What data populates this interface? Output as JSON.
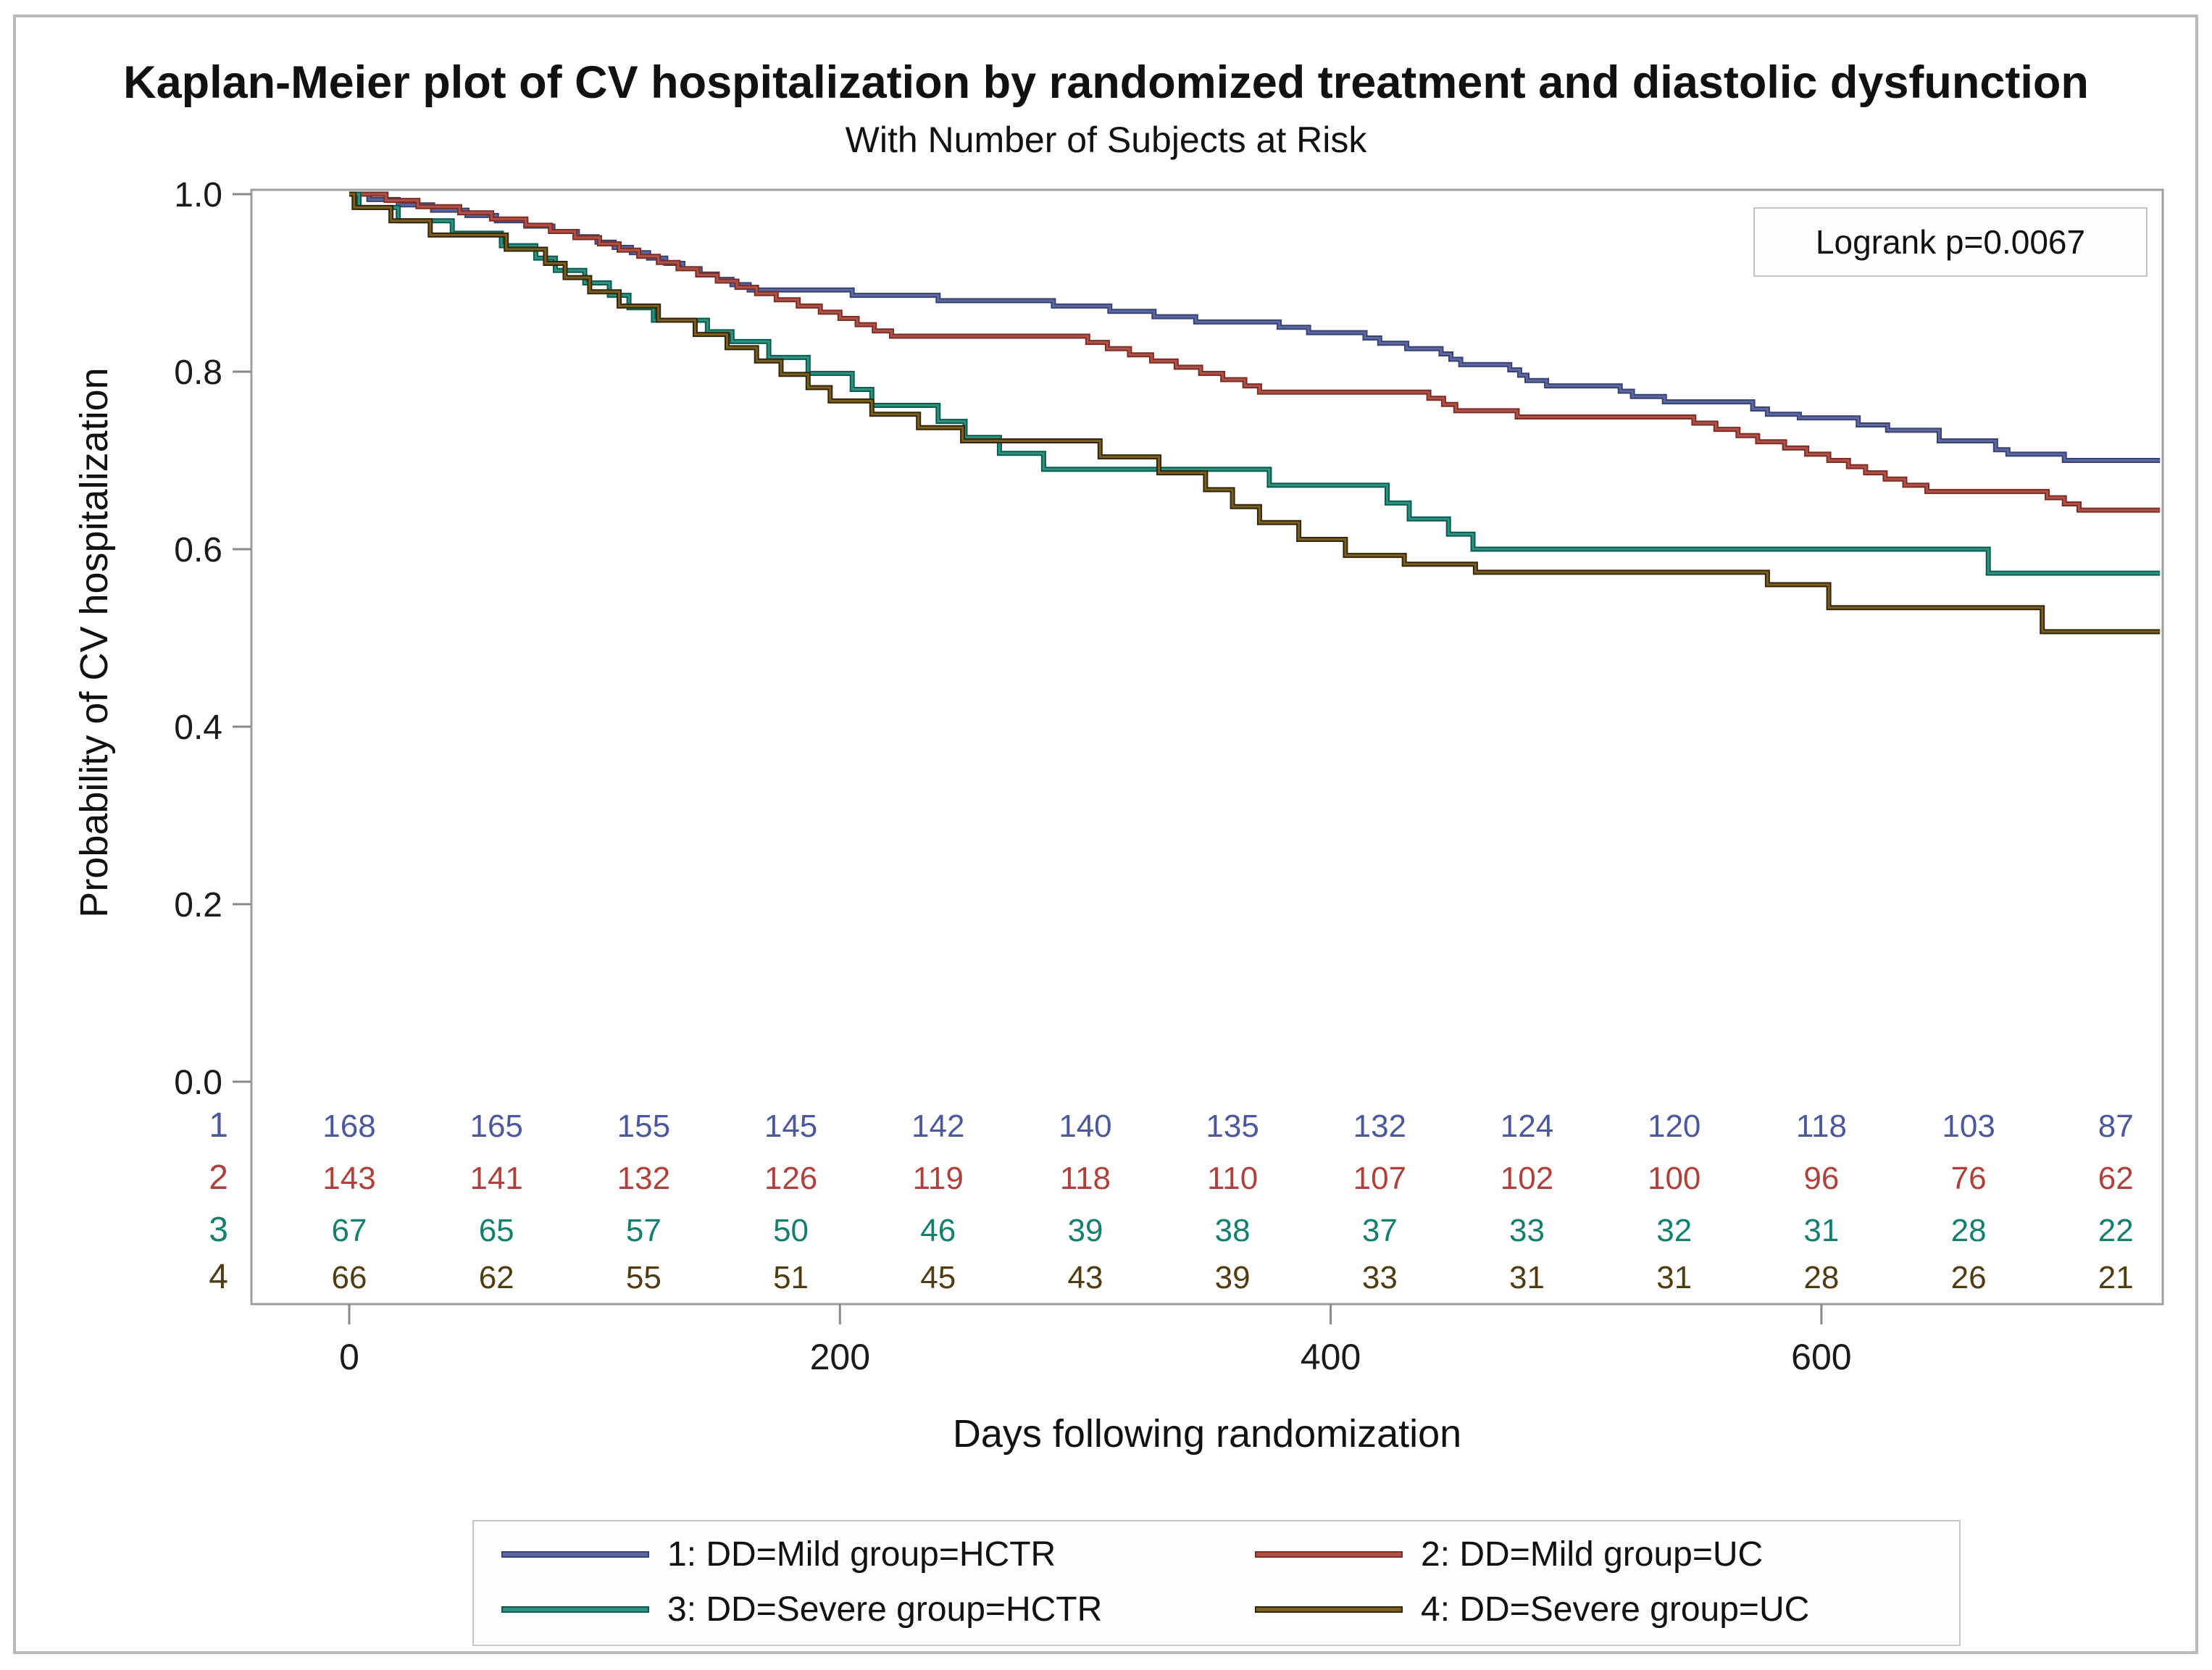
{
  "figure": {
    "title": "Kaplan-Meier plot of CV hospitalization by randomized treatment and diastolic dysfunction",
    "subtitle": "With Number of Subjects at Risk",
    "annotation": "Logrank p=0.0067"
  },
  "chart_data": {
    "type": "line",
    "step": "hv",
    "title": "Kaplan-Meier plot of CV hospitalization by randomized treatment and diastolic dysfunction",
    "subtitle": "With Number of Subjects at Risk",
    "xlabel": "Days following randomization",
    "ylabel": "Probability of CV hospitalization",
    "xlim": [
      -40,
      738
    ],
    "ylim": [
      0.0,
      1.0
    ],
    "x_ticks": [
      0,
      200,
      400,
      600
    ],
    "y_ticks": [
      1.0,
      0.8,
      0.6,
      0.4,
      0.2,
      0.0
    ],
    "grid": false,
    "legend_position": "bottom",
    "annotation": "Logrank p=0.0067",
    "series": [
      {
        "name": "1: DD=Mild group=HCTR",
        "color": "#5c68a5",
        "edge": "#39426e",
        "points": [
          [
            0,
            1.0
          ],
          [
            8,
            0.994
          ],
          [
            20,
            0.988
          ],
          [
            34,
            0.982
          ],
          [
            48,
            0.976
          ],
          [
            60,
            0.97
          ],
          [
            72,
            0.964
          ],
          [
            83,
            0.958
          ],
          [
            93,
            0.952
          ],
          [
            101,
            0.946
          ],
          [
            108,
            0.94
          ],
          [
            115,
            0.934
          ],
          [
            122,
            0.928
          ],
          [
            129,
            0.922
          ],
          [
            136,
            0.916
          ],
          [
            143,
            0.91
          ],
          [
            150,
            0.904
          ],
          [
            156,
            0.898
          ],
          [
            163,
            0.892
          ],
          [
            205,
            0.886
          ],
          [
            240,
            0.88
          ],
          [
            287,
            0.874
          ],
          [
            310,
            0.868
          ],
          [
            328,
            0.862
          ],
          [
            345,
            0.856
          ],
          [
            379,
            0.85
          ],
          [
            391,
            0.844
          ],
          [
            414,
            0.838
          ],
          [
            420,
            0.832
          ],
          [
            431,
            0.826
          ],
          [
            445,
            0.82
          ],
          [
            449,
            0.814
          ],
          [
            453,
            0.808
          ],
          [
            473,
            0.802
          ],
          [
            477,
            0.796
          ],
          [
            480,
            0.79
          ],
          [
            488,
            0.784
          ],
          [
            518,
            0.778
          ],
          [
            523,
            0.772
          ],
          [
            536,
            0.766
          ],
          [
            572,
            0.758
          ],
          [
            578,
            0.752
          ],
          [
            591,
            0.748
          ],
          [
            615,
            0.74
          ],
          [
            627,
            0.734
          ],
          [
            648,
            0.722
          ],
          [
            671,
            0.712
          ],
          [
            676,
            0.707
          ],
          [
            699,
            0.7
          ],
          [
            738,
            0.7
          ]
        ]
      },
      {
        "name": "2: DD=Mild group=UC",
        "color": "#b0514a",
        "edge": "#7c2d24",
        "points": [
          [
            0,
            1.0
          ],
          [
            15,
            0.993
          ],
          [
            28,
            0.986
          ],
          [
            45,
            0.979
          ],
          [
            58,
            0.972
          ],
          [
            72,
            0.965
          ],
          [
            82,
            0.958
          ],
          [
            92,
            0.951
          ],
          [
            102,
            0.944
          ],
          [
            110,
            0.937
          ],
          [
            118,
            0.93
          ],
          [
            126,
            0.923
          ],
          [
            134,
            0.916
          ],
          [
            142,
            0.909
          ],
          [
            150,
            0.902
          ],
          [
            158,
            0.895
          ],
          [
            166,
            0.888
          ],
          [
            174,
            0.881
          ],
          [
            183,
            0.874
          ],
          [
            192,
            0.867
          ],
          [
            200,
            0.86
          ],
          [
            207,
            0.853
          ],
          [
            214,
            0.846
          ],
          [
            221,
            0.84
          ],
          [
            301,
            0.833
          ],
          [
            309,
            0.826
          ],
          [
            318,
            0.819
          ],
          [
            327,
            0.812
          ],
          [
            337,
            0.805
          ],
          [
            347,
            0.798
          ],
          [
            356,
            0.791
          ],
          [
            365,
            0.784
          ],
          [
            371,
            0.777
          ],
          [
            440,
            0.77
          ],
          [
            446,
            0.763
          ],
          [
            451,
            0.756
          ],
          [
            476,
            0.749
          ],
          [
            548,
            0.742
          ],
          [
            557,
            0.735
          ],
          [
            566,
            0.728
          ],
          [
            574,
            0.721
          ],
          [
            585,
            0.714
          ],
          [
            594,
            0.707
          ],
          [
            603,
            0.7
          ],
          [
            611,
            0.693
          ],
          [
            618,
            0.686
          ],
          [
            626,
            0.679
          ],
          [
            634,
            0.672
          ],
          [
            643,
            0.665
          ],
          [
            692,
            0.658
          ],
          [
            699,
            0.651
          ],
          [
            705,
            0.644
          ],
          [
            738,
            0.644
          ]
        ]
      },
      {
        "name": "3: DD=Severe group=HCTR",
        "color": "#2d9380",
        "edge": "#0a5a4e",
        "points": [
          [
            0,
            1.0
          ],
          [
            4,
            0.985
          ],
          [
            20,
            0.97
          ],
          [
            42,
            0.956
          ],
          [
            62,
            0.942
          ],
          [
            76,
            0.928
          ],
          [
            84,
            0.914
          ],
          [
            96,
            0.9
          ],
          [
            106,
            0.886
          ],
          [
            114,
            0.872
          ],
          [
            124,
            0.858
          ],
          [
            146,
            0.845
          ],
          [
            156,
            0.834
          ],
          [
            171,
            0.816
          ],
          [
            187,
            0.798
          ],
          [
            205,
            0.78
          ],
          [
            213,
            0.762
          ],
          [
            240,
            0.744
          ],
          [
            251,
            0.726
          ],
          [
            265,
            0.708
          ],
          [
            283,
            0.69
          ],
          [
            375,
            0.672
          ],
          [
            423,
            0.652
          ],
          [
            432,
            0.634
          ],
          [
            448,
            0.617
          ],
          [
            458,
            0.6
          ],
          [
            668,
            0.573
          ],
          [
            738,
            0.573
          ]
        ]
      },
      {
        "name": "4: DD=Severe group=UC",
        "color": "#7a5f1f",
        "edge": "#33250a",
        "points": [
          [
            0,
            1.0
          ],
          [
            2,
            0.985
          ],
          [
            17,
            0.97
          ],
          [
            33,
            0.954
          ],
          [
            64,
            0.938
          ],
          [
            80,
            0.922
          ],
          [
            88,
            0.906
          ],
          [
            98,
            0.89
          ],
          [
            110,
            0.874
          ],
          [
            126,
            0.858
          ],
          [
            141,
            0.842
          ],
          [
            154,
            0.827
          ],
          [
            166,
            0.812
          ],
          [
            176,
            0.797
          ],
          [
            187,
            0.782
          ],
          [
            196,
            0.767
          ],
          [
            213,
            0.752
          ],
          [
            232,
            0.737
          ],
          [
            250,
            0.722
          ],
          [
            306,
            0.704
          ],
          [
            330,
            0.686
          ],
          [
            349,
            0.667
          ],
          [
            360,
            0.648
          ],
          [
            371,
            0.63
          ],
          [
            387,
            0.611
          ],
          [
            406,
            0.593
          ],
          [
            430,
            0.583
          ],
          [
            459,
            0.574
          ],
          [
            578,
            0.56
          ],
          [
            603,
            0.534
          ],
          [
            690,
            0.507
          ],
          [
            738,
            0.507
          ]
        ]
      }
    ]
  },
  "at_risk": {
    "times": [
      0,
      60,
      120,
      180,
      240,
      300,
      360,
      420,
      480,
      540,
      600,
      660,
      720
    ],
    "rows": [
      {
        "label": "1",
        "color": "#4c589c",
        "counts": [
          168,
          165,
          155,
          145,
          142,
          140,
          135,
          132,
          124,
          120,
          118,
          103,
          87
        ]
      },
      {
        "label": "2",
        "color": "#b0413a",
        "counts": [
          143,
          141,
          132,
          126,
          119,
          118,
          110,
          107,
          102,
          100,
          96,
          76,
          62
        ]
      },
      {
        "label": "3",
        "color": "#13806e",
        "counts": [
          67,
          65,
          57,
          50,
          46,
          39,
          38,
          37,
          33,
          32,
          31,
          28,
          22
        ]
      },
      {
        "label": "4",
        "color": "#4f3d10",
        "counts": [
          66,
          62,
          55,
          51,
          45,
          43,
          39,
          33,
          31,
          31,
          28,
          26,
          21
        ]
      }
    ]
  }
}
